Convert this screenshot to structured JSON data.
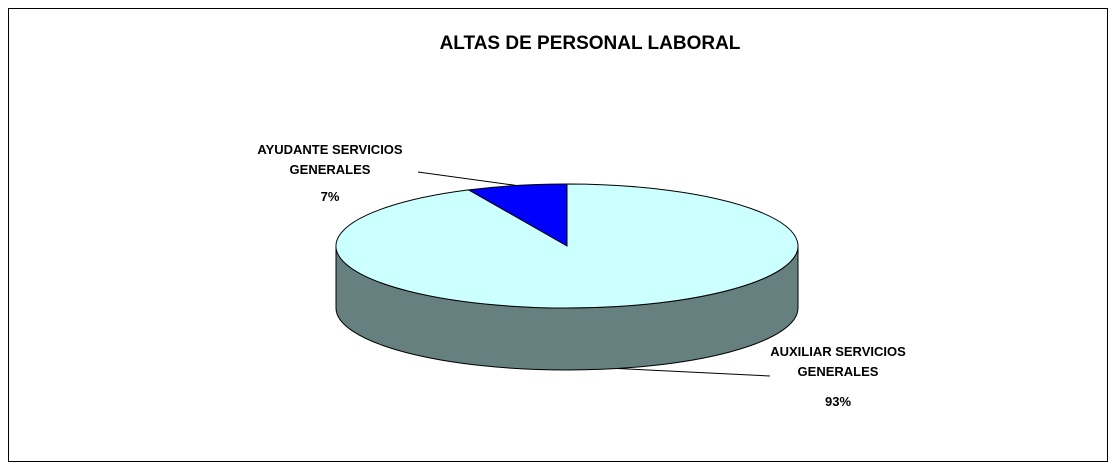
{
  "chart_data": {
    "type": "pie3d",
    "title": "ALTAS DE PERSONAL LABORAL",
    "categories": [
      "AYUDANTE SERVICIOS GENERALES",
      "AUXILIAR SERVICIOS GENERALES"
    ],
    "values": [
      7,
      93
    ],
    "value_labels": [
      "7%",
      "93%"
    ],
    "colors": [
      "#0000ff",
      "#ccffff"
    ]
  }
}
